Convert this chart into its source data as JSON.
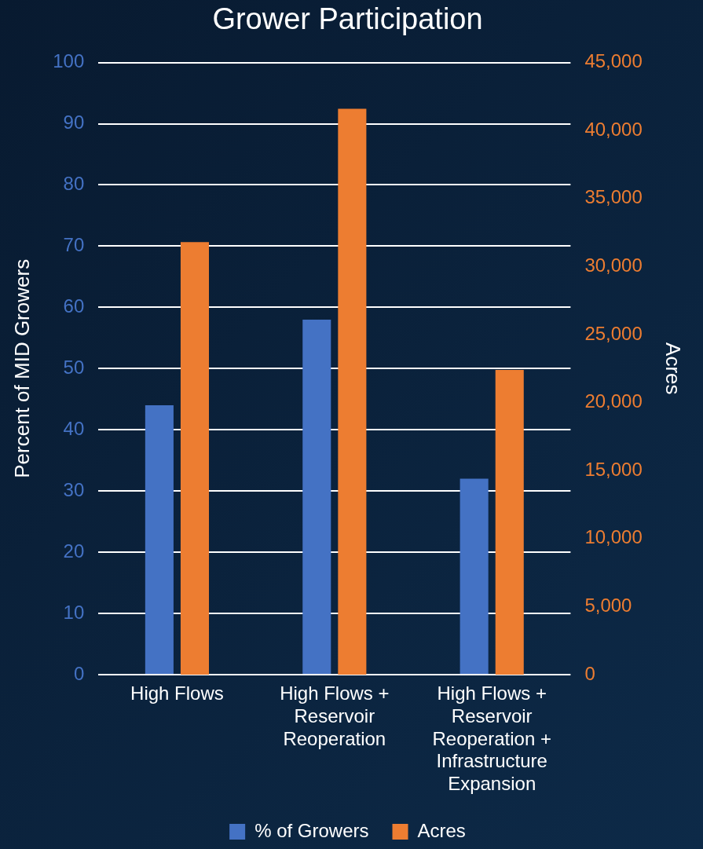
{
  "chart_data": {
    "type": "bar",
    "title": "Grower Participation",
    "ylabel": "Percent of MID Growers",
    "y2label": "Acres",
    "categories": [
      "High Flows",
      "High Flows + Reservoir Reoperation",
      "High Flows + Reservoir Reoperation + Infrastructure Expansion"
    ],
    "series": [
      {
        "name": "% of Growers",
        "color": "#4472c4",
        "values": [
          44,
          58,
          32
        ]
      },
      {
        "name": "Acres",
        "color": "#ed7d31",
        "axis": "y2",
        "values": [
          31800,
          41600,
          22400
        ]
      }
    ],
    "ylim": [
      0,
      100
    ],
    "yticks": [
      0,
      10,
      20,
      30,
      40,
      50,
      60,
      70,
      80,
      90,
      100
    ],
    "y2lim": [
      0,
      45000
    ],
    "y2ticks": [
      0,
      {
        "value": 5000,
        "label": "5,000"
      },
      {
        "value": 10000,
        "label": "10,000"
      },
      {
        "value": 15000,
        "label": "15,000"
      },
      {
        "value": 20000,
        "label": "20,000"
      },
      {
        "value": 25000,
        "label": "25,000"
      },
      {
        "value": 30000,
        "label": "30,000"
      },
      {
        "value": 35000,
        "label": "35,000"
      },
      {
        "value": 40000,
        "label": "40,000"
      },
      {
        "value": 45000,
        "label": "45,000"
      }
    ],
    "grid": "y",
    "legend": "bottom"
  }
}
